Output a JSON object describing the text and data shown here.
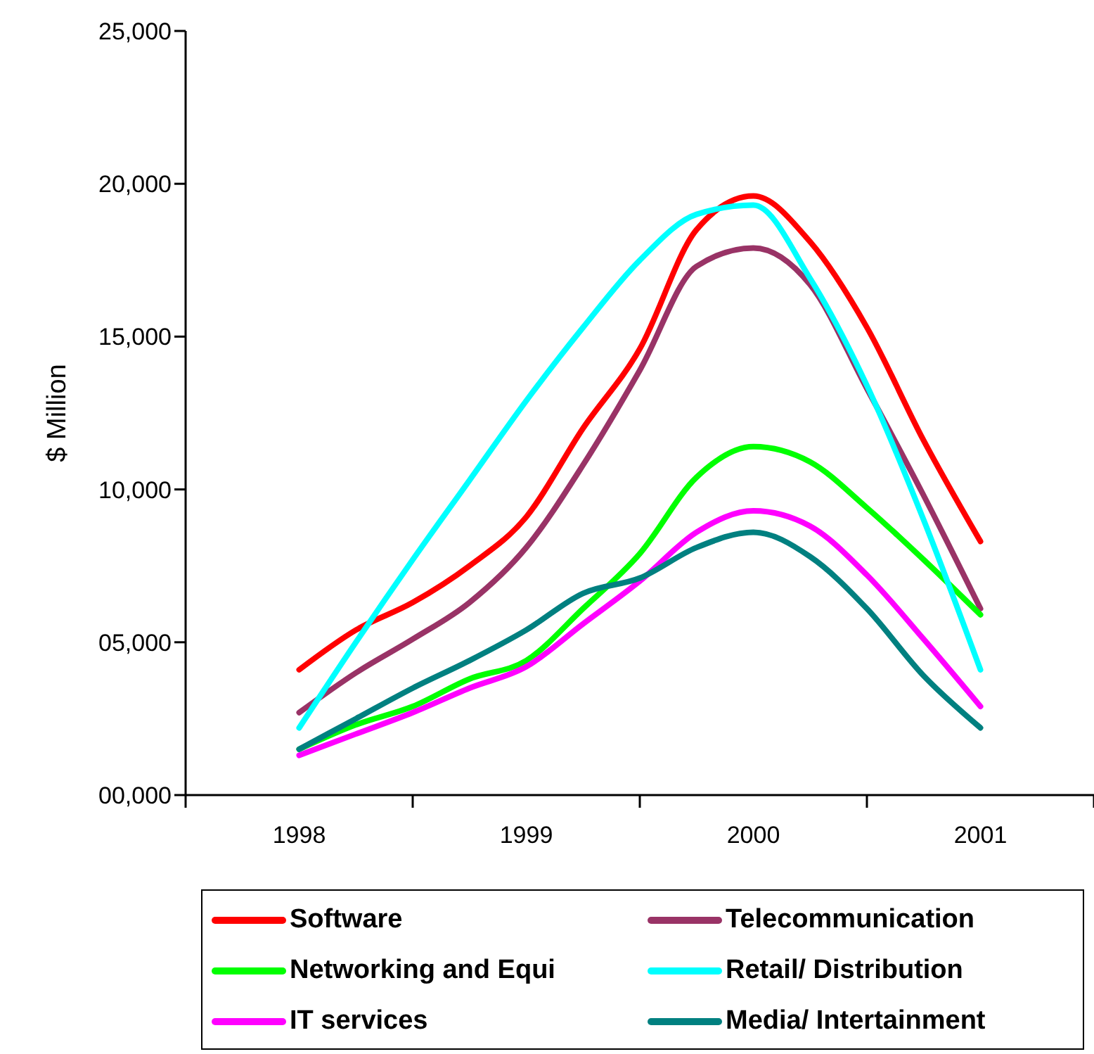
{
  "chart_data": {
    "type": "line",
    "ylabel": "$ Million",
    "x": [
      1998,
      1998.25,
      1998.5,
      1998.75,
      1999,
      1999.25,
      1999.5,
      1999.75,
      2000,
      2000.25,
      2000.5,
      2000.75,
      2001
    ],
    "xlim": [
      1997.5,
      2001.5
    ],
    "xticks": [
      {
        "value": 1997.5,
        "label": null
      },
      {
        "value": 1998,
        "label": "1998"
      },
      {
        "value": 1998.5,
        "label": null
      },
      {
        "value": 1999,
        "label": "1999"
      },
      {
        "value": 1999.5,
        "label": null
      },
      {
        "value": 2000,
        "label": "2000"
      },
      {
        "value": 2000.5,
        "label": null
      },
      {
        "value": 2001,
        "label": "2001"
      },
      {
        "value": 2001.5,
        "label": null
      }
    ],
    "ylim": [
      0,
      25000
    ],
    "yticks": [
      {
        "value": 0,
        "label": "00,000"
      },
      {
        "value": 5000,
        "label": "05,000"
      },
      {
        "value": 10000,
        "label": "10,000"
      },
      {
        "value": 15000,
        "label": "15,000"
      },
      {
        "value": 20000,
        "label": "20,000"
      },
      {
        "value": 25000,
        "label": "25,000"
      }
    ],
    "grid": false,
    "legend": "bottom",
    "marker": "none",
    "line_style": "solid",
    "series": [
      {
        "name": "Software",
        "color": "#ff0000",
        "values": [
          4100,
          5400,
          6300,
          7500,
          9100,
          12000,
          14600,
          18500,
          19600,
          18100,
          15300,
          11600,
          8300
        ]
      },
      {
        "name": "Telecommunication",
        "color": "#993366",
        "values": [
          2700,
          4000,
          5100,
          6300,
          8100,
          10800,
          13900,
          17300,
          17900,
          16700,
          13300,
          9800,
          6100
        ]
      },
      {
        "name": "Networking and Equi",
        "color": "#00ff00",
        "values": [
          1500,
          2300,
          2900,
          3800,
          4400,
          6100,
          7900,
          10400,
          11400,
          10900,
          9400,
          7700,
          5900
        ]
      },
      {
        "name": "Retail/ Distribution",
        "color": "#00ffff",
        "values": [
          2200,
          5000,
          7700,
          10300,
          12900,
          15300,
          17500,
          19000,
          19300,
          16900,
          13400,
          9000,
          4100
        ]
      },
      {
        "name": "IT services",
        "color": "#ff00ff",
        "values": [
          1300,
          2000,
          2700,
          3500,
          4200,
          5600,
          7000,
          8600,
          9300,
          8800,
          7200,
          5100,
          2900
        ]
      },
      {
        "name": "Media/ Intertainment",
        "color": "#008080",
        "values": [
          1500,
          2500,
          3500,
          4400,
          5400,
          6600,
          7100,
          8100,
          8600,
          7800,
          6100,
          3900,
          2200
        ]
      }
    ]
  }
}
